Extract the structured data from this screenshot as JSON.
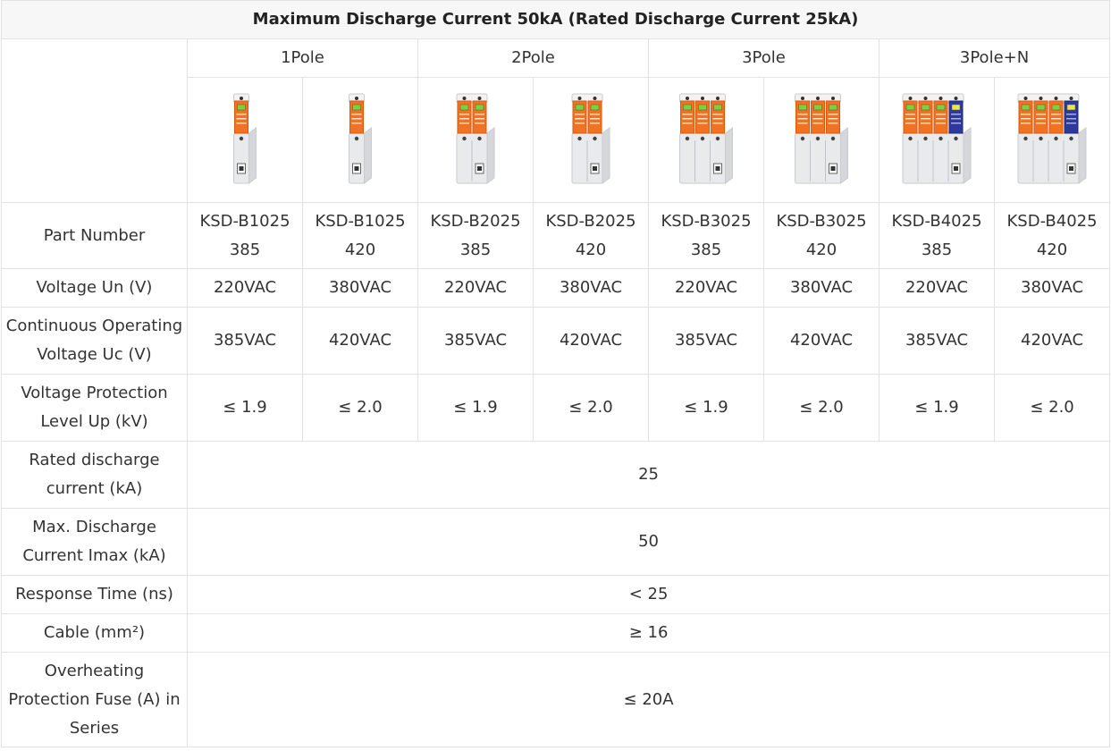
{
  "title": "Maximum Discharge Current 50kA (Rated Discharge Current 25kA)",
  "groups": [
    "1Pole",
    "2Pole",
    "3Pole",
    "3Pole+N"
  ],
  "colors": {
    "orange": "#f2721f",
    "orange_dark": "#d85a10",
    "blue": "#2e3a9b",
    "body": "#e9eaec",
    "border": "#e2e2e2"
  },
  "products": [
    {
      "icon": "spd-1pole-image",
      "modules": 1,
      "neutral": false
    },
    {
      "icon": "spd-1pole-image",
      "modules": 1,
      "neutral": false
    },
    {
      "icon": "spd-2pole-image",
      "modules": 2,
      "neutral": false
    },
    {
      "icon": "spd-2pole-image",
      "modules": 2,
      "neutral": false
    },
    {
      "icon": "spd-3pole-image",
      "modules": 3,
      "neutral": false
    },
    {
      "icon": "spd-3pole-image",
      "modules": 3,
      "neutral": false
    },
    {
      "icon": "spd-3pole-n-image",
      "modules": 3,
      "neutral": true
    },
    {
      "icon": "spd-3pole-n-image",
      "modules": 3,
      "neutral": true
    }
  ],
  "rows": {
    "part_number": {
      "label": "Part Number",
      "values": [
        [
          "KSD-B1025",
          "385"
        ],
        [
          "KSD-B1025",
          "420"
        ],
        [
          "KSD-B2025",
          "385"
        ],
        [
          "KSD-B2025",
          "420"
        ],
        [
          "KSD-B3025",
          "385"
        ],
        [
          "KSD-B3025",
          "420"
        ],
        [
          "KSD-B4025",
          "385"
        ],
        [
          "KSD-B4025",
          "420"
        ]
      ]
    },
    "voltage_un": {
      "label": "Voltage Un (V)",
      "values": [
        "220VAC",
        "380VAC",
        "220VAC",
        "380VAC",
        "220VAC",
        "380VAC",
        "220VAC",
        "380VAC"
      ]
    },
    "continuous": {
      "label_lines": [
        "Continuous Operating",
        "Voltage Uc (V)"
      ],
      "values": [
        "385VAC",
        "420VAC",
        "385VAC",
        "420VAC",
        "385VAC",
        "420VAC",
        "385VAC",
        "420VAC"
      ]
    },
    "protection": {
      "label_lines": [
        "Voltage Protection",
        "Level Up (kV)"
      ],
      "values": [
        "≤ 1.9",
        "≤ 2.0",
        "≤ 1.9",
        "≤ 2.0",
        "≤ 1.9",
        "≤ 2.0",
        "≤ 1.9",
        "≤ 2.0"
      ]
    },
    "rated": {
      "label_lines": [
        "Rated discharge",
        "current (kA)"
      ],
      "value": "25"
    },
    "max_discharge": {
      "label_lines": [
        "Max. Discharge",
        "Current Imax (kA)"
      ],
      "value": "50"
    },
    "response": {
      "label": "Response Time (ns)",
      "value": "< 25"
    },
    "cable": {
      "label": "Cable (mm²)",
      "value": "≥ 16"
    },
    "fuse": {
      "label_lines": [
        "Overheating",
        "Protection Fuse (A) in",
        "Series"
      ],
      "value": "≤ 20A"
    }
  }
}
